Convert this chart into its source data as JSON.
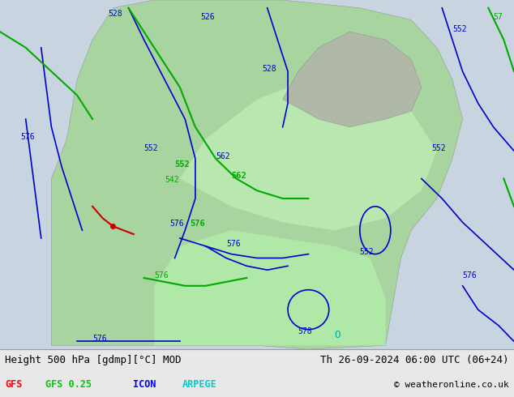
{
  "title_left": "Height 500 hPa [gdmp][°C] MOD",
  "title_right": "Th 26-09-2024 06:00 UTC (06+24)",
  "legend_items": [
    {
      "label": "GFS",
      "color": "#ff0000"
    },
    {
      "label": "GFS 0.25",
      "color": "#00cc00"
    },
    {
      "label": "ICON",
      "color": "#0000ff"
    },
    {
      "label": "ARPEGE",
      "color": "#00cccc"
    }
  ],
  "copyright": "© weatheronline.co.uk",
  "bg_color": "#e8e8e8",
  "figsize": [
    6.34,
    4.9
  ],
  "dpi": 100
}
